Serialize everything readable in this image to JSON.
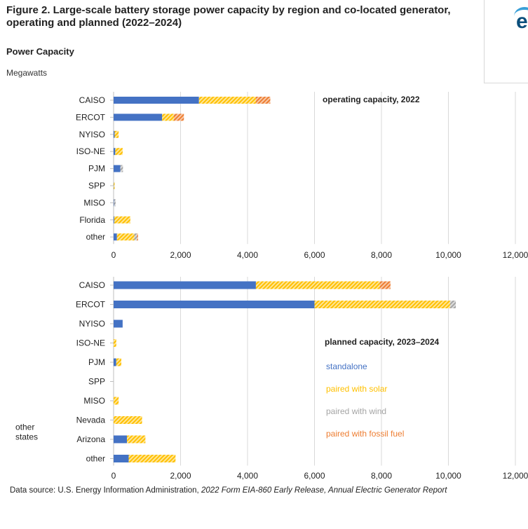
{
  "header": {
    "title": "Figure 2. Large-scale battery storage power capacity by region and co-located generator, operating and planned (2022–2024)",
    "subtitle": "Power Capacity",
    "unit": "Megawatts"
  },
  "logo": {
    "letter": "e"
  },
  "colors": {
    "standalone": "#4472C4",
    "solar": "#FFC000",
    "wind": "#A5A5A5",
    "fossil": "#ED7D31"
  },
  "legend": [
    {
      "key": "standalone",
      "label": "standalone"
    },
    {
      "key": "solar",
      "label": "paired with solar"
    },
    {
      "key": "wind",
      "label": "paired with wind"
    },
    {
      "key": "fossil",
      "label": "paired with fossil fuel"
    }
  ],
  "chart_data": [
    {
      "type": "bar",
      "orientation": "horizontal",
      "stacked": true,
      "title": "operating capacity, 2022",
      "categories": [
        "CAISO",
        "ERCOT",
        "NYISO",
        "ISO-NE",
        "PJM",
        "SPP",
        "MISO",
        "Florida",
        "other"
      ],
      "series": [
        {
          "key": "standalone",
          "values": [
            2550,
            1450,
            30,
            50,
            200,
            5,
            10,
            20,
            100
          ]
        },
        {
          "key": "solar",
          "values": [
            1700,
            350,
            120,
            220,
            0,
            25,
            0,
            480,
            520
          ]
        },
        {
          "key": "wind",
          "values": [
            0,
            0,
            0,
            0,
            80,
            0,
            50,
            0,
            80
          ]
        },
        {
          "key": "fossil",
          "values": [
            430,
            300,
            0,
            0,
            0,
            0,
            0,
            0,
            30
          ]
        }
      ],
      "xlim": [
        0,
        12000
      ],
      "xticks": [
        "0",
        "2,000",
        "4,000",
        "6,000",
        "8,000",
        "10,000",
        "12,000"
      ],
      "grid": true
    },
    {
      "type": "bar",
      "orientation": "horizontal",
      "stacked": true,
      "title": "planned capacity, 2023–2024",
      "categories": [
        "CAISO",
        "ERCOT",
        "NYISO",
        "ISO-NE",
        "PJM",
        "SPP",
        "MISO",
        "Nevada",
        "Arizona",
        "other"
      ],
      "group_label": "other states",
      "series": [
        {
          "key": "standalone",
          "values": [
            4250,
            6000,
            270,
            0,
            80,
            0,
            0,
            0,
            400,
            450
          ]
        },
        {
          "key": "solar",
          "values": [
            3700,
            4050,
            0,
            80,
            150,
            0,
            150,
            850,
            550,
            1400
          ]
        },
        {
          "key": "wind",
          "values": [
            0,
            170,
            0,
            0,
            0,
            0,
            0,
            0,
            0,
            0
          ]
        },
        {
          "key": "fossil",
          "values": [
            320,
            0,
            0,
            0,
            0,
            0,
            0,
            0,
            0,
            0
          ]
        }
      ],
      "xlim": [
        0,
        12000
      ],
      "xticks": [
        "0",
        "2,000",
        "4,000",
        "6,000",
        "8,000",
        "10,000",
        "12,000"
      ],
      "grid": true
    }
  ],
  "source": {
    "prefix": "Data source: U.S. Energy Information Administration, ",
    "italic": "2022 Form EIA-860 Early Release, Annual Electric Generator Report"
  }
}
